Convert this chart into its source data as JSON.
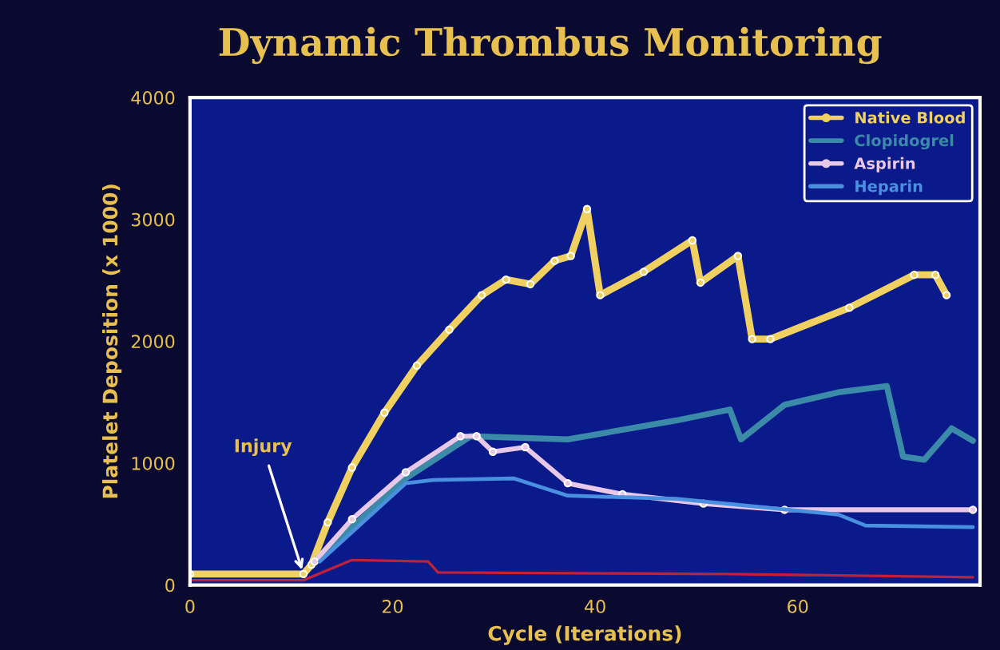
{
  "chart_data": {
    "type": "line",
    "title": "Dynamic Thrombus Monitoring",
    "xlabel": "Cycle (Iterations)",
    "ylabel": "Platelet Deposition (x 1000)",
    "xlim": [
      0,
      78
    ],
    "xticks": [
      0,
      20,
      40,
      60
    ],
    "ylim": [
      0,
      4000
    ],
    "yticks": [
      0,
      1000,
      2000,
      3000,
      4000
    ],
    "grid": false,
    "legend": "top right",
    "annotations": [
      {
        "text": "Injury",
        "x": 11.2,
        "y": 90
      }
    ],
    "series": [
      {
        "name": "Native Blood",
        "color": "#f0d060",
        "marker": "circle",
        "x": [
          0,
          11.2,
          12,
          13.6,
          16,
          19.2,
          22.4,
          25.6,
          28.8,
          31.2,
          33.6,
          36,
          37.6,
          39.2,
          40.5,
          44.8,
          49.6,
          50.4,
          54.1,
          55.5,
          57.3,
          65.1,
          71.5,
          73.6,
          74.7
        ],
        "values": [
          90,
          90,
          167,
          514,
          964,
          1414,
          1800,
          2095,
          2378,
          2506,
          2468,
          2660,
          2700,
          3085,
          2378,
          2570,
          2828,
          2481,
          2700,
          2018,
          2018,
          2275,
          2545,
          2545,
          2378
        ]
      },
      {
        "name": "Clopidogrel",
        "color": "#3a8aa8",
        "marker": "none",
        "x": [
          12.3,
          21.3,
          27.7,
          37.3,
          48,
          53.3,
          54.4,
          58.7,
          64,
          68.8,
          70.4,
          72.5,
          75.2,
          77.3
        ],
        "values": [
          193,
          874,
          1221,
          1195,
          1350,
          1440,
          1195,
          1478,
          1581,
          1632,
          1054,
          1028,
          1285,
          1183
        ]
      },
      {
        "name": "Aspirin",
        "color": "#e8c8e8",
        "marker": "circle",
        "x": [
          12.3,
          16,
          21.3,
          26.7,
          28.3,
          29.9,
          33.1,
          37.3,
          42.7,
          50.7,
          58.7,
          77.3
        ],
        "values": [
          193,
          540,
          925,
          1221,
          1221,
          1093,
          1131,
          835,
          745,
          668,
          617,
          617
        ]
      },
      {
        "name": "Heparin",
        "color": "#4a90e0",
        "marker": "none",
        "x": [
          12.8,
          21.3,
          24,
          32,
          37.3,
          48,
          64,
          66.7,
          77.3
        ],
        "values": [
          193,
          835,
          861,
          874,
          733,
          707,
          578,
          488,
          475
        ]
      },
      {
        "color": "#c0203a",
        "marker": "none",
        "x": [
          0,
          11.2,
          16,
          23.5,
          24.5,
          53.3,
          77.3
        ],
        "values": [
          39,
          39,
          205,
          193,
          103,
          90,
          64
        ]
      }
    ]
  }
}
